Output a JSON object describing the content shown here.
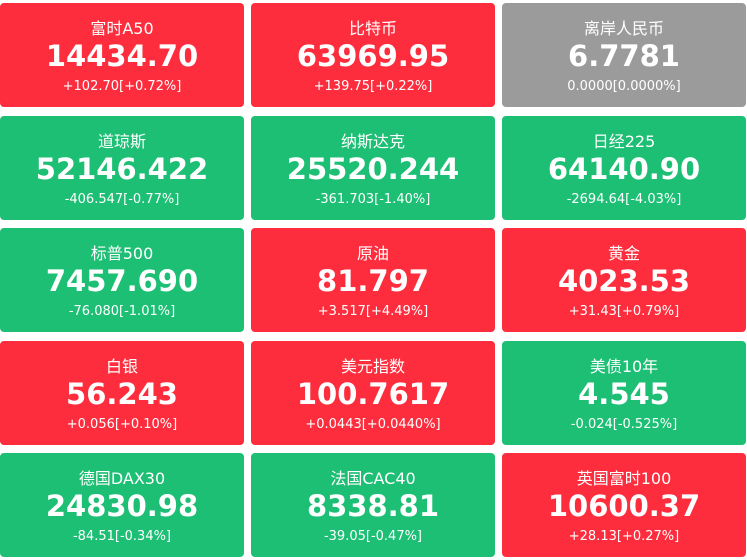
{
  "tiles": [
    {
      "name": "富时A50",
      "price": "14434.70",
      "change": "+102.70[+0.72%]",
      "color": "#fd2d3d"
    },
    {
      "name": "比特币",
      "price": "63969.95",
      "change": "+139.75[+0.22%]",
      "color": "#fd2d3d"
    },
    {
      "name": "离岸人民币",
      "price": "6.7781",
      "change": "0.0000[0.0000%]",
      "color": "#9b9b9b"
    },
    {
      "name": "道琼斯",
      "price": "52146.422",
      "change": "-406.547[-0.77%]",
      "color": "#1cbf74"
    },
    {
      "name": "纳斯达克",
      "price": "25520.244",
      "change": "-361.703[-1.40%]",
      "color": "#1cbf74"
    },
    {
      "name": "日经225",
      "price": "64140.90",
      "change": "-2694.64[-4.03%]",
      "color": "#1cbf74"
    },
    {
      "name": "标普500",
      "price": "7457.690",
      "change": "-76.080[-1.01%]",
      "color": "#1cbf74"
    },
    {
      "name": "原油",
      "price": "81.797",
      "change": "+3.517[+4.49%]",
      "color": "#fd2d3d"
    },
    {
      "name": "黄金",
      "price": "4023.53",
      "change": "+31.43[+0.79%]",
      "color": "#fd2d3d"
    },
    {
      "name": "白银",
      "price": "56.243",
      "change": "+0.056[+0.10%]",
      "color": "#fd2d3d"
    },
    {
      "name": "美元指数",
      "price": "100.7617",
      "change": "+0.0443[+0.0440%]",
      "color": "#fd2d3d"
    },
    {
      "name": "美债10年",
      "price": "4.545",
      "change": "-0.024[-0.525%]",
      "color": "#1cbf74"
    },
    {
      "name": "德国DAX30",
      "price": "24830.98",
      "change": "-84.51[-0.34%]",
      "color": "#1cbf74"
    },
    {
      "name": "法国CAC40",
      "price": "8338.81",
      "change": "-39.05[-0.47%]",
      "color": "#1cbf74"
    },
    {
      "name": "英国富时100",
      "price": "10600.37",
      "change": "+28.13[+0.27%]",
      "color": "#fd2d3d"
    }
  ]
}
